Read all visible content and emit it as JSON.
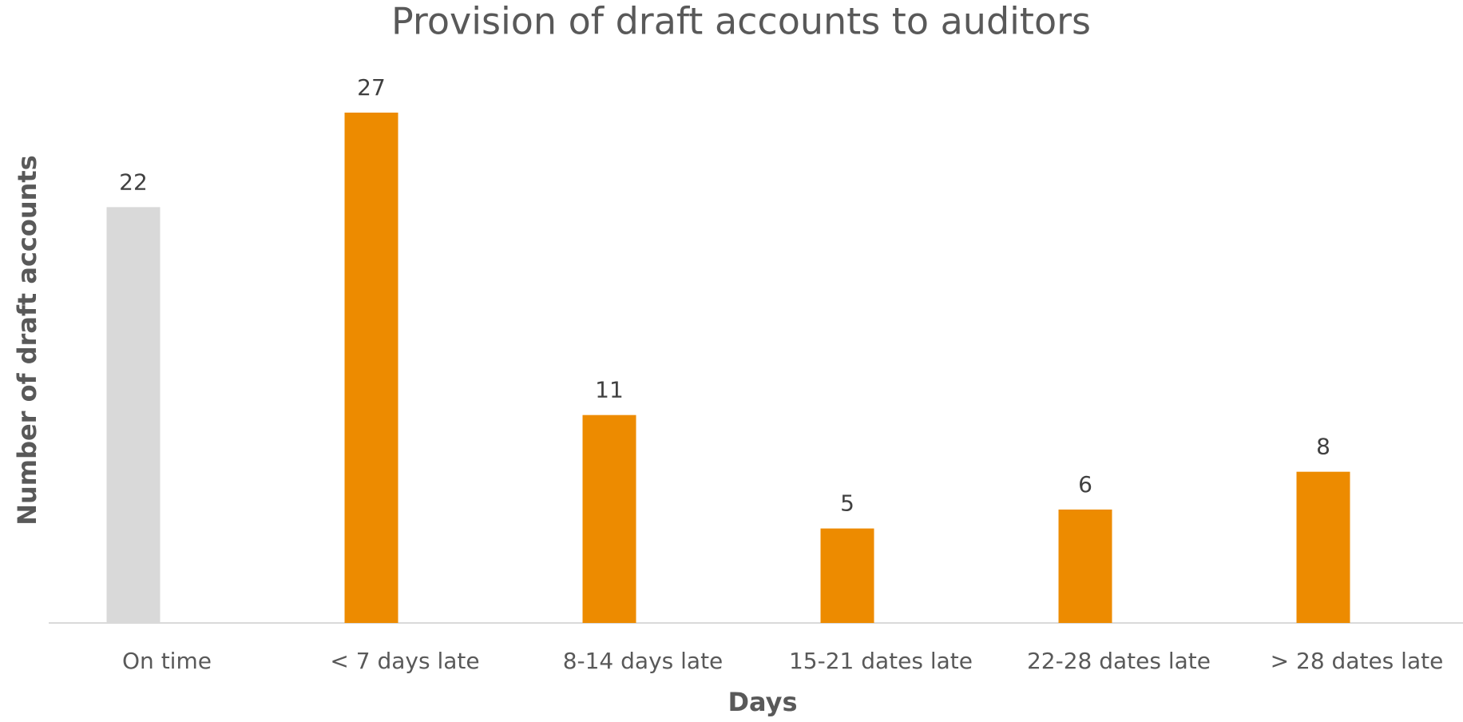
{
  "chart_data": {
    "type": "bar",
    "title": "Provision of draft accounts to auditors",
    "x_label": "Days",
    "y_label": "Number of draft accounts",
    "categories": [
      "On time",
      "< 7 days late",
      "8-14 days late",
      "15-21 dates late",
      "22-28 dates late",
      "> 28 dates late"
    ],
    "values": [
      22,
      27,
      11,
      5,
      6,
      8
    ],
    "colors": [
      "#d9d9d9",
      "#ed8b00",
      "#ed8b00",
      "#ed8b00",
      "#ed8b00",
      "#ed8b00"
    ]
  }
}
